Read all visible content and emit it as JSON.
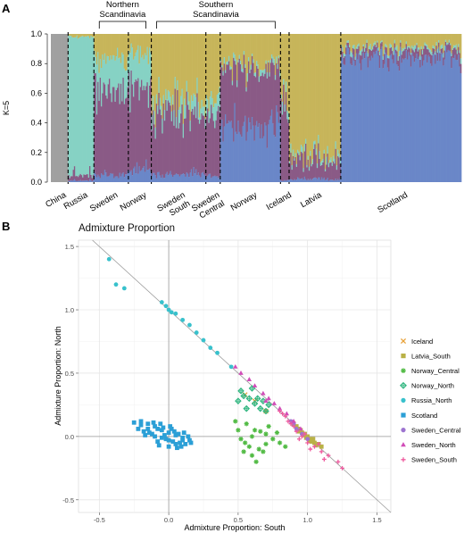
{
  "panel_a_letter": "A",
  "panel_b_letter": "B",
  "chart_data": [
    {
      "type": "bar",
      "panel": "A",
      "title": "",
      "ylabel": "K=5",
      "ylim": [
        0,
        1
      ],
      "yticks": [
        "0.0",
        "0.2",
        "0.4",
        "0.6",
        "0.8",
        "1.0"
      ],
      "stacked": true,
      "component_colors": [
        "#a0a0a0",
        "#86d2c4",
        "#8a5a86",
        "#c7b55a",
        "#6a87c8"
      ],
      "populations": [
        {
          "label": "China",
          "n": 6,
          "mean": [
            1.0,
            0.0,
            0.0,
            0.0,
            0.0
          ]
        },
        {
          "label": "Russia",
          "n": 9,
          "mean": [
            0.0,
            0.93,
            0.04,
            0.02,
            0.01
          ]
        },
        {
          "label": "Sweden",
          "n": 12,
          "mean": [
            0.0,
            0.22,
            0.55,
            0.18,
            0.05
          ]
        },
        {
          "label": "Norway",
          "n": 8,
          "mean": [
            0.0,
            0.25,
            0.55,
            0.12,
            0.08
          ]
        },
        {
          "label": "Sweden South",
          "n": 19,
          "mean": [
            0.0,
            0.08,
            0.42,
            0.45,
            0.05
          ]
        },
        {
          "label": "Sweden Central",
          "n": 5,
          "mean": [
            0.0,
            0.1,
            0.44,
            0.42,
            0.04
          ]
        },
        {
          "label": "Norway",
          "n": 21,
          "mean": [
            0.0,
            0.03,
            0.4,
            0.2,
            0.37
          ]
        },
        {
          "label": "Iceland",
          "n": 3,
          "mean": [
            0.0,
            0.06,
            0.5,
            0.43,
            0.01
          ]
        },
        {
          "label": "Latvia",
          "n": 18,
          "mean": [
            0.0,
            0.03,
            0.12,
            0.83,
            0.02
          ]
        },
        {
          "label": "Scotland",
          "n": 42,
          "mean": [
            0.0,
            0.02,
            0.05,
            0.08,
            0.85
          ]
        }
      ],
      "groups": [
        {
          "label_lines": [
            "Northern",
            "Scandinavia"
          ]
        },
        {
          "label_lines": [
            "Southern",
            "Scandinavia"
          ]
        }
      ]
    },
    {
      "type": "scatter",
      "panel": "B",
      "title": "Admixture Proportion",
      "xlabel": "Admixture Proportion: South",
      "ylabel": "Admixture Proportion: North",
      "xlim": [
        -0.65,
        1.6
      ],
      "ylim": [
        -0.6,
        1.55
      ],
      "xticks": [
        "-0.5",
        "0.0",
        "0.5",
        "1.0",
        "1.5"
      ],
      "yticks": [
        "-0.5",
        "0.0",
        "0.5",
        "1.0",
        "1.5"
      ],
      "grid": true,
      "reference_lines": {
        "x0": true,
        "y0": true,
        "diagonal": "y = 1 - x"
      },
      "legend_position": "right",
      "series": [
        {
          "name": "Iceland",
          "color": "#E8A23A",
          "marker": "x",
          "points": [
            [
              0.62,
              0.28
            ],
            [
              0.7,
              0.2
            ],
            [
              0.55,
              0.33
            ]
          ]
        },
        {
          "name": "Latvia_South",
          "color": "#B9B146",
          "marker": "square",
          "points": [
            [
              0.92,
              0.08
            ],
            [
              0.95,
              0.05
            ],
            [
              0.98,
              0.02
            ],
            [
              1.0,
              0.0
            ],
            [
              1.02,
              -0.02
            ],
            [
              1.05,
              -0.05
            ],
            [
              1.08,
              -0.06
            ],
            [
              0.9,
              0.1
            ],
            [
              0.96,
              0.03
            ],
            [
              0.99,
              -0.01
            ],
            [
              1.03,
              -0.04
            ],
            [
              1.06,
              -0.07
            ],
            [
              1.1,
              -0.08
            ],
            [
              0.94,
              0.04
            ],
            [
              1.01,
              -0.03
            ],
            [
              0.97,
              0.01
            ],
            [
              1.04,
              -0.02
            ],
            [
              0.93,
              0.06
            ]
          ]
        },
        {
          "name": "Norway_Central",
          "color": "#52BB45",
          "marker": "star",
          "points": [
            [
              0.5,
              0.05
            ],
            [
              0.55,
              -0.05
            ],
            [
              0.6,
              0.0
            ],
            [
              0.65,
              -0.1
            ],
            [
              0.7,
              0.02
            ],
            [
              0.62,
              0.05
            ],
            [
              0.58,
              -0.08
            ],
            [
              0.75,
              -0.02
            ],
            [
              0.52,
              -0.02
            ],
            [
              0.68,
              -0.12
            ],
            [
              0.8,
              -0.05
            ],
            [
              0.6,
              -0.15
            ],
            [
              0.72,
              0.08
            ],
            [
              0.56,
              0.1
            ],
            [
              0.66,
              0.04
            ],
            [
              0.63,
              -0.2
            ],
            [
              0.84,
              -0.08
            ],
            [
              0.54,
              -0.12
            ],
            [
              0.7,
              -0.06
            ],
            [
              0.78,
              0.03
            ],
            [
              0.48,
              0.12
            ]
          ]
        },
        {
          "name": "Norway_North",
          "color": "#2FB57F",
          "marker": "diamond",
          "points": [
            [
              0.52,
              0.36
            ],
            [
              0.58,
              0.3
            ],
            [
              0.62,
              0.26
            ],
            [
              0.56,
              0.22
            ],
            [
              0.66,
              0.22
            ],
            [
              0.7,
              0.2
            ],
            [
              0.6,
              0.38
            ],
            [
              0.64,
              0.3
            ],
            [
              0.5,
              0.28
            ],
            [
              0.72,
              0.25
            ],
            [
              0.54,
              0.32
            ],
            [
              0.68,
              0.28
            ]
          ]
        },
        {
          "name": "Russia_North",
          "color": "#38C1CC",
          "marker": "circle",
          "points": [
            [
              -0.43,
              1.4
            ],
            [
              -0.38,
              1.2
            ],
            [
              -0.32,
              1.17
            ],
            [
              -0.05,
              1.06
            ],
            [
              -0.02,
              1.03
            ],
            [
              0.0,
              1.0
            ],
            [
              0.05,
              0.97
            ],
            [
              0.1,
              0.92
            ],
            [
              0.15,
              0.88
            ],
            [
              0.2,
              0.82
            ],
            [
              0.25,
              0.76
            ],
            [
              0.3,
              0.7
            ],
            [
              0.35,
              0.66
            ],
            [
              0.45,
              0.55
            ],
            [
              0.02,
              0.98
            ]
          ]
        },
        {
          "name": "Scotland",
          "color": "#2B9FD6",
          "marker": "square",
          "points": [
            [
              -0.25,
              0.11
            ],
            [
              -0.2,
              0.12
            ],
            [
              -0.15,
              0.1
            ],
            [
              -0.1,
              0.08
            ],
            [
              -0.05,
              0.05
            ],
            [
              0.0,
              0.03
            ],
            [
              0.05,
              0.01
            ],
            [
              0.1,
              -0.01
            ],
            [
              0.15,
              -0.03
            ],
            [
              -0.22,
              0.06
            ],
            [
              -0.18,
              0.04
            ],
            [
              -0.12,
              0.02
            ],
            [
              -0.08,
              0.06
            ],
            [
              -0.02,
              -0.02
            ],
            [
              0.03,
              -0.04
            ],
            [
              0.08,
              -0.05
            ],
            [
              0.12,
              -0.06
            ],
            [
              -0.15,
              0.06
            ],
            [
              -0.1,
              0.0
            ],
            [
              -0.05,
              -0.01
            ],
            [
              0.0,
              -0.03
            ],
            [
              0.05,
              -0.06
            ],
            [
              0.1,
              -0.03
            ],
            [
              -0.2,
              0.09
            ],
            [
              -0.06,
              0.1
            ],
            [
              0.02,
              0.06
            ],
            [
              0.07,
              0.02
            ],
            [
              -0.14,
              0.03
            ],
            [
              -0.03,
              0.01
            ],
            [
              0.0,
              -0.08
            ],
            [
              0.06,
              -0.09
            ],
            [
              -0.08,
              -0.04
            ],
            [
              0.14,
              0.0
            ],
            [
              -0.17,
              0.01
            ],
            [
              -0.11,
              0.11
            ],
            [
              0.04,
              0.04
            ],
            [
              0.09,
              -0.08
            ],
            [
              -0.04,
              0.07
            ],
            [
              0.01,
              0.08
            ],
            [
              0.11,
              0.03
            ],
            [
              -0.07,
              -0.07
            ],
            [
              0.16,
              -0.05
            ]
          ]
        },
        {
          "name": "Sweden_Central",
          "color": "#9D74D0",
          "marker": "circle",
          "points": [
            [
              0.88,
              0.12
            ],
            [
              0.92,
              0.06
            ],
            [
              0.96,
              0.02
            ],
            [
              1.0,
              -0.02
            ],
            [
              0.9,
              0.1
            ]
          ]
        },
        {
          "name": "Sweden_North",
          "color": "#D14CB8",
          "marker": "triangle",
          "points": [
            [
              0.48,
              0.55
            ],
            [
              0.52,
              0.5
            ],
            [
              0.58,
              0.45
            ],
            [
              0.62,
              0.4
            ],
            [
              0.68,
              0.34
            ],
            [
              0.72,
              0.3
            ],
            [
              0.76,
              0.26
            ],
            [
              0.8,
              0.22
            ],
            [
              0.85,
              0.18
            ],
            [
              0.9,
              0.12
            ],
            [
              0.95,
              0.06
            ],
            [
              0.7,
              0.28
            ]
          ]
        },
        {
          "name": "Sweden_South",
          "color": "#EF5A9E",
          "marker": "plus",
          "points": [
            [
              0.8,
              0.2
            ],
            [
              0.84,
              0.16
            ],
            [
              0.88,
              0.1
            ],
            [
              0.92,
              0.04
            ],
            [
              0.96,
              0.0
            ],
            [
              1.0,
              -0.05
            ],
            [
              1.05,
              -0.08
            ],
            [
              1.1,
              -0.12
            ],
            [
              1.15,
              -0.15
            ],
            [
              1.22,
              -0.2
            ],
            [
              1.25,
              -0.25
            ],
            [
              0.86,
              0.12
            ],
            [
              0.9,
              0.08
            ],
            [
              0.94,
              -0.02
            ],
            [
              0.98,
              0.02
            ],
            [
              1.02,
              -0.1
            ],
            [
              1.08,
              -0.06
            ],
            [
              0.82,
              0.18
            ],
            [
              1.12,
              -0.18
            ]
          ]
        }
      ]
    }
  ]
}
